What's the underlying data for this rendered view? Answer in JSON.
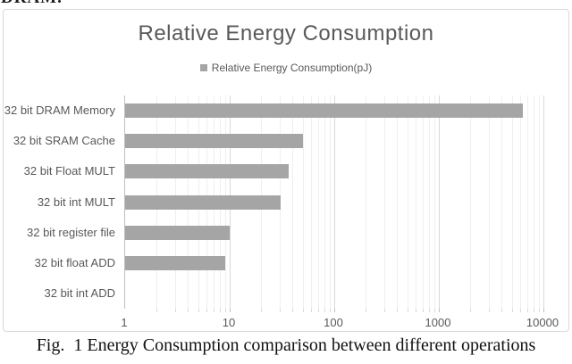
{
  "page": {
    "top_clipped_text": "DRAM.",
    "caption": "Fig.  1 Energy Consumption comparison between different operations"
  },
  "chart": {
    "title": "Relative Energy Consumption",
    "legend": {
      "marker_icon": "square-marker-icon",
      "marker_color": "#a5a5a5",
      "label": "Relative Energy Consumption(pJ)"
    }
  },
  "chart_data": {
    "type": "bar",
    "orientation": "horizontal",
    "title": "Relative Energy Consumption",
    "legend_entries": [
      "Relative Energy Consumption(pJ)"
    ],
    "legend_position": "top",
    "categories": [
      "32 bit DRAM Memory",
      "32 bit SRAM Cache",
      "32 bit Float MULT",
      "32 bit int MULT",
      "32 bit register file",
      "32 bit float ADD",
      "32 bit int ADD"
    ],
    "values": [
      6400,
      50,
      37,
      31,
      10,
      9,
      1
    ],
    "x_scale": "log10",
    "xlim": [
      1,
      10000
    ],
    "x_ticks": [
      1,
      10,
      100,
      1000,
      10000
    ],
    "x_tick_labels": [
      "1",
      "10",
      "100",
      "1000",
      "10000"
    ],
    "grid": "vertical major and minor log gridlines",
    "bar_color": "#a5a5a5",
    "xlabel": "",
    "ylabel": ""
  },
  "colors": {
    "bar": "#a5a5a5",
    "text_gray": "#595959",
    "border": "#d9d9d9",
    "gridline_major": "#d9d9d9",
    "gridline_minor": "#efefef",
    "axis_line": "#bfbfbf",
    "caption_text": "#111111",
    "background": "#ffffff"
  }
}
